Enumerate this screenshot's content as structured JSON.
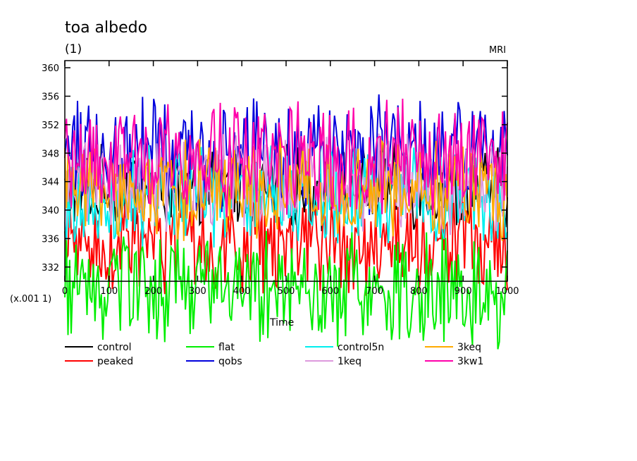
{
  "chart_data": {
    "type": "line",
    "title": "toa albedo",
    "unit_label": "(1)",
    "corner_label": "MRI",
    "x_scale_label": "(x.001 1)",
    "xlabel": "Time",
    "x_tick_labels": [
      "0",
      "100",
      "200",
      "300",
      "400",
      "500",
      "600",
      "700",
      "800",
      "900",
      "1000"
    ],
    "x_range": [
      0,
      1000
    ],
    "y_tick_labels": [
      "332",
      "336",
      "340",
      "344",
      "348",
      "352",
      "356",
      "360"
    ],
    "ylim": [
      330,
      361
    ],
    "y_scale_factor": 0.001,
    "legend_placement": "bottom",
    "grid": false,
    "series": [
      {
        "name": "control",
        "color": "#000000",
        "mean": 343,
        "amp": 5
      },
      {
        "name": "peaked",
        "color": "#ff0000",
        "mean": 335,
        "amp": 6
      },
      {
        "name": "flat",
        "color": "#00ee00",
        "mean": 329,
        "amp": 7
      },
      {
        "name": "qobs",
        "color": "#0000dd",
        "mean": 348,
        "amp": 7
      },
      {
        "name": "control5n",
        "color": "#00eeee",
        "mean": 342,
        "amp": 6
      },
      {
        "name": "1keq",
        "color": "#dd99dd",
        "mean": 344,
        "amp": 6
      },
      {
        "name": "3keq",
        "color": "#ffaa00",
        "mean": 343,
        "amp": 6
      },
      {
        "name": "3kw1",
        "color": "#ff00aa",
        "mean": 347,
        "amp": 7
      }
    ]
  }
}
